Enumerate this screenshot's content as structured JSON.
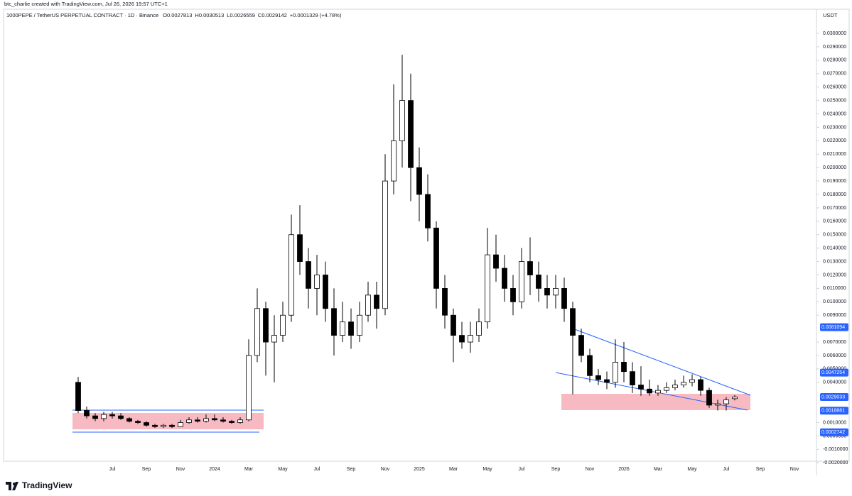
{
  "chart_data": {
    "type": "candlestick",
    "credit": "btc_charlie created with TradingView.com, Jul 26, 2026 19:57 UTC+1",
    "title": "1000PEPE / TetherUS PERPETUAL CONTRACT · 1D · Binance",
    "legend_values": [
      "O0.0027813",
      "H0.0030513",
      "L0.0026559",
      "C0.0029142",
      "+0.0001329 (+4.78%)"
    ],
    "currency": "USDT",
    "brand": "TradingView",
    "up_color": "#ffffff",
    "down_color": "#000000",
    "price_label_color": "#2962ff",
    "categories": [
      null,
      null,
      null,
      null,
      "Jul",
      null,
      null,
      null,
      "Sep",
      null,
      null,
      null,
      "Nov",
      null,
      null,
      null,
      "2024",
      null,
      null,
      null,
      "Mar",
      null,
      null,
      null,
      "May",
      null,
      null,
      null,
      "Jul",
      null,
      null,
      null,
      "Sep",
      null,
      null,
      null,
      "Nov",
      null,
      null,
      null,
      "2025",
      null,
      null,
      null,
      "Mar",
      null,
      null,
      null,
      "May",
      null,
      null,
      null,
      "Jul",
      null,
      null,
      null,
      "Sep",
      null,
      null,
      null,
      "Nov",
      null,
      null,
      null,
      "2026",
      null,
      null,
      null,
      "Mar",
      null,
      null,
      null,
      "May",
      null,
      null,
      null,
      "Jul",
      null,
      null,
      null,
      "Sep",
      null,
      null,
      null,
      "Nov"
    ],
    "open": [
      0.004,
      0.0019,
      0.0015,
      0.0013,
      0.0016,
      0.0015,
      0.0013,
      0.0011,
      0.001,
      0.0008,
      0.0007,
      0.0008,
      0.0007,
      0.001,
      0.0012,
      0.0011,
      0.0013,
      0.0012,
      0.0011,
      0.001,
      0.0012,
      0.006,
      0.0095,
      0.007,
      0.0075,
      0.009,
      0.015,
      0.013,
      0.011,
      0.012,
      0.0095,
      0.0075,
      0.0085,
      0.0075,
      0.009,
      0.0105,
      0.0095,
      0.019,
      0.022,
      0.025,
      0.02,
      0.018,
      0.0155,
      0.011,
      0.009,
      0.0075,
      0.007,
      0.0075,
      0.0085,
      0.0135,
      0.0125,
      0.011,
      0.01,
      0.013,
      0.012,
      0.011,
      0.0105,
      0.011,
      0.0095,
      0.0075,
      0.006,
      0.0045,
      0.0042,
      0.004,
      0.0055,
      0.0048,
      0.0038,
      0.0035,
      0.0032,
      0.0034,
      0.0036,
      0.0038,
      0.004,
      0.0042,
      0.0034,
      0.0023,
      0.0024,
      0.0027813,
      null,
      null,
      null,
      null,
      null,
      null,
      null
    ],
    "high": [
      0.0044,
      0.0022,
      0.0017,
      0.0018,
      0.0018,
      0.0017,
      0.0014,
      0.0012,
      0.0011,
      0.0009,
      0.0009,
      0.0009,
      0.0012,
      0.0014,
      0.0014,
      0.0016,
      0.0016,
      0.0014,
      0.0012,
      0.0014,
      0.0072,
      0.011,
      0.01,
      0.009,
      0.01,
      0.0165,
      0.0172,
      0.014,
      0.0135,
      0.013,
      0.011,
      0.01,
      0.0095,
      0.01,
      0.0115,
      0.0115,
      0.021,
      0.0262,
      0.0284,
      0.027,
      0.0215,
      0.0195,
      0.016,
      0.012,
      0.0095,
      0.0085,
      0.0085,
      0.0095,
      0.0155,
      0.015,
      0.0135,
      0.012,
      0.014,
      0.0148,
      0.013,
      0.012,
      0.012,
      0.0118,
      0.01,
      0.008,
      0.0065,
      0.005,
      0.0048,
      0.0072,
      0.007,
      0.0055,
      0.0052,
      0.0042,
      0.0038,
      0.004,
      0.0042,
      0.0045,
      0.0046,
      0.0044,
      0.0036,
      0.0027,
      0.0029,
      0.0030513,
      null,
      null,
      null,
      null,
      null,
      null,
      null
    ],
    "low": [
      0.0017,
      0.0013,
      0.0011,
      0.0011,
      0.0013,
      0.0012,
      0.001,
      0.0009,
      0.0007,
      0.0006,
      0.0006,
      0.0006,
      0.0007,
      0.0009,
      0.001,
      0.001,
      0.0011,
      0.001,
      0.0009,
      0.0009,
      0.0011,
      0.0055,
      0.0045,
      0.004,
      0.007,
      0.0085,
      0.012,
      0.0095,
      0.009,
      0.0085,
      0.006,
      0.007,
      0.0065,
      0.007,
      0.0085,
      0.008,
      0.009,
      0.018,
      0.02,
      0.0175,
      0.016,
      0.0145,
      0.0095,
      0.008,
      0.0055,
      0.0065,
      0.0062,
      0.007,
      0.008,
      0.0115,
      0.01,
      0.009,
      0.0095,
      0.0105,
      0.01,
      0.0095,
      0.0095,
      0.0085,
      0.0031,
      0.0055,
      0.004,
      0.0038,
      0.0035,
      0.0036,
      0.004,
      0.0032,
      0.003,
      0.003,
      0.003,
      0.0032,
      0.0034,
      0.0036,
      0.0037,
      0.003,
      0.0021,
      0.0019,
      0.0019,
      0.0026559,
      null,
      null,
      null,
      null,
      null,
      null,
      null
    ],
    "close": [
      0.0019,
      0.0015,
      0.0013,
      0.0016,
      0.0015,
      0.0013,
      0.0011,
      0.001,
      0.0008,
      0.0007,
      0.0008,
      0.0007,
      0.001,
      0.0012,
      0.0011,
      0.0013,
      0.0012,
      0.0011,
      0.001,
      0.0012,
      0.006,
      0.0095,
      0.007,
      0.0075,
      0.009,
      0.015,
      0.013,
      0.011,
      0.012,
      0.0095,
      0.0075,
      0.0085,
      0.0075,
      0.009,
      0.0105,
      0.0095,
      0.019,
      0.022,
      0.025,
      0.02,
      0.018,
      0.0155,
      0.011,
      0.009,
      0.0075,
      0.007,
      0.0075,
      0.0085,
      0.0135,
      0.0125,
      0.011,
      0.01,
      0.013,
      0.012,
      0.011,
      0.0105,
      0.011,
      0.0095,
      0.0075,
      0.006,
      0.0045,
      0.0042,
      0.004,
      0.0055,
      0.0048,
      0.0038,
      0.0035,
      0.0032,
      0.0034,
      0.0036,
      0.0038,
      0.004,
      0.0042,
      0.0034,
      0.0023,
      0.0024,
      0.0027,
      0.0029142,
      null,
      null,
      null,
      null,
      null,
      null,
      null
    ],
    "ylim": [
      -0.00188,
      0.0318
    ],
    "yticks": [
      {
        "value": 0.03,
        "label": "0.0300000"
      },
      {
        "value": 0.029,
        "label": "0.0290000"
      },
      {
        "value": 0.028,
        "label": "0.0280000"
      },
      {
        "value": 0.027,
        "label": "0.0270000"
      },
      {
        "value": 0.026,
        "label": "0.0260000"
      },
      {
        "value": 0.025,
        "label": "0.0250000"
      },
      {
        "value": 0.024,
        "label": "0.0240000"
      },
      {
        "value": 0.023,
        "label": "0.0230000"
      },
      {
        "value": 0.022,
        "label": "0.0220000"
      },
      {
        "value": 0.021,
        "label": "0.0210000"
      },
      {
        "value": 0.02,
        "label": "0.0200000"
      },
      {
        "value": 0.019,
        "label": "0.0190000"
      },
      {
        "value": 0.018,
        "label": "0.0180000"
      },
      {
        "value": 0.017,
        "label": "0.0170000"
      },
      {
        "value": 0.016,
        "label": "0.0160000"
      },
      {
        "value": 0.015,
        "label": "0.0150000"
      },
      {
        "value": 0.014,
        "label": "0.0140000"
      },
      {
        "value": 0.013,
        "label": "0.0130000"
      },
      {
        "value": 0.012,
        "label": "0.0120000"
      },
      {
        "value": 0.011,
        "label": "0.0110000"
      },
      {
        "value": 0.01,
        "label": "0.0100000"
      },
      {
        "value": 0.009,
        "label": "0.0090000"
      },
      {
        "value": 0.007,
        "label": "0.0070000"
      },
      {
        "value": 0.006,
        "label": "0.0060000"
      },
      {
        "value": 0.005,
        "label": "0.0050000"
      },
      {
        "value": 0.004,
        "label": "0.0040000"
      },
      {
        "value": 0.001,
        "label": "0.0010000"
      },
      {
        "value": 0,
        "label": "0.0000000"
      },
      {
        "value": -0.001,
        "label": "-0.0010000"
      },
      {
        "value": -0.002,
        "label": "-0.0020000"
      }
    ],
    "price_labels": [
      {
        "value": 0.0081094,
        "label": "0.0081094"
      },
      {
        "value": 0.0047254,
        "label": "0.0047254"
      },
      {
        "value": 0.0029033,
        "label": "0.0029033"
      },
      {
        "value": 0.0018881,
        "label": "0.0018881"
      },
      {
        "value": 0.0002742,
        "label": "0.0002742"
      }
    ]
  }
}
